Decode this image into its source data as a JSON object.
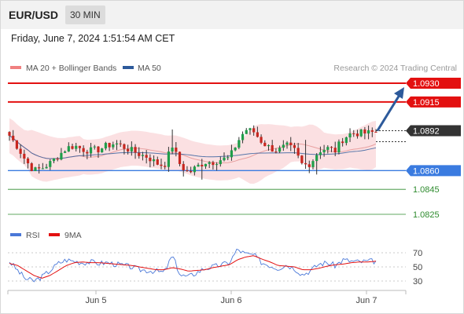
{
  "header": {
    "symbol": "EUR/USD",
    "timeframe": "30 MIN"
  },
  "timestamp": "Friday, June 7, 2024 1:51:54 AM CET",
  "legend": {
    "bollinger": {
      "label": "MA 20 + Bollinger Bands",
      "color": "#f08080"
    },
    "ma50": {
      "label": "MA 50",
      "color": "#2d5a9b"
    }
  },
  "credit": "Research © 2024 Trading Central",
  "rsi_legend": {
    "rsi": {
      "label": "RSI",
      "color": "#4a78d8"
    },
    "ma9": {
      "label": "9MA",
      "color": "#e31010"
    }
  },
  "chart_data": {
    "type": "candlestick",
    "x_labels": [
      "Jun 5",
      "Jun 6",
      "Jun 7"
    ],
    "current_price": "1.0892",
    "levels": [
      {
        "label": "1.0930",
        "value": 1.093,
        "kind": "resistance",
        "color": "#e31010",
        "tag": true
      },
      {
        "label": "1.0915",
        "value": 1.0915,
        "kind": "resistance",
        "color": "#e31010",
        "tag": true
      },
      {
        "label": "1.0860",
        "value": 1.086,
        "kind": "pivot",
        "color": "#3a7be0",
        "tag": true
      },
      {
        "label": "1.0845",
        "value": 1.0845,
        "kind": "support",
        "color": "#2e8b2e",
        "tag": false
      },
      {
        "label": "1.0825",
        "value": 1.0825,
        "kind": "support",
        "color": "#2e8b2e",
        "tag": false
      }
    ],
    "price_scale": {
      "min": 1.0825,
      "max": 1.093
    },
    "close_path": [
      1.0888,
      1.0879,
      1.0868,
      1.086,
      1.0862,
      1.0866,
      1.0872,
      1.0878,
      1.088,
      1.0877,
      1.0876,
      1.0877,
      1.088,
      1.0882,
      1.0879,
      1.0876,
      1.0873,
      1.0871,
      1.0866,
      1.0864,
      1.088,
      1.0864,
      1.0858,
      1.0863,
      1.0867,
      1.0867,
      1.0869,
      1.087,
      1.0883,
      1.0893,
      1.0891,
      1.0883,
      1.0878,
      1.0876,
      1.088,
      1.0876,
      1.0864,
      1.0866,
      1.0876,
      1.0878,
      1.0876,
      1.0886,
      1.089,
      1.089,
      1.089,
      1.0891
    ],
    "forecast_target": 1.093,
    "rsi": {
      "levels": [
        70,
        50,
        30
      ],
      "rsi_path": [
        58,
        45,
        33,
        30,
        36,
        45,
        55,
        60,
        58,
        56,
        57,
        55,
        56,
        54,
        52,
        50,
        46,
        45,
        44,
        42,
        66,
        38,
        36,
        42,
        48,
        50,
        53,
        56,
        75,
        68,
        67,
        56,
        52,
        48,
        53,
        48,
        39,
        45,
        54,
        56,
        52,
        60,
        58,
        57,
        58,
        58
      ],
      "ma9_path": [
        55,
        52,
        45,
        38,
        34,
        38,
        45,
        52,
        56,
        57,
        56,
        56,
        55,
        54,
        53,
        52,
        50,
        48,
        46,
        46,
        49,
        47,
        44,
        45,
        46,
        49,
        51,
        53,
        60,
        64,
        66,
        61,
        57,
        52,
        51,
        50,
        46,
        46,
        48,
        51,
        53,
        54,
        56,
        57,
        57,
        58
      ]
    }
  }
}
